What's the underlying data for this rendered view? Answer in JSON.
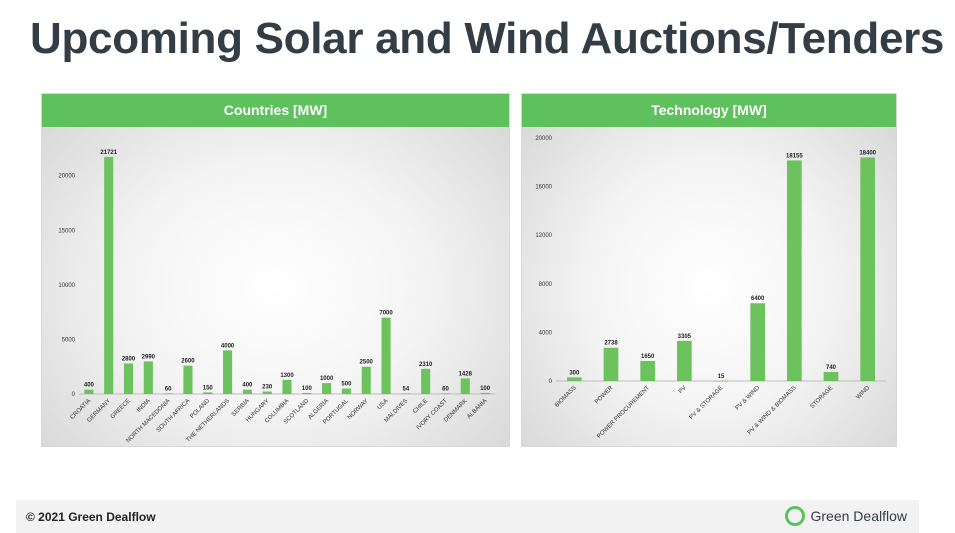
{
  "page": {
    "title": "Upcoming Solar and Wind Auctions/Tenders"
  },
  "footer": {
    "copyright": "© 2021 Green Dealflow",
    "logo_text": "Green Dealflow"
  },
  "colors": {
    "bar": "#6cc35e",
    "header": "#5ec15e",
    "title": "#333d45"
  },
  "chart_data": [
    {
      "type": "bar",
      "title": "Countries [MW]",
      "categories": [
        "CROATIA",
        "GERMANY",
        "GREECE",
        "INDIA",
        "NORTH MACEDONIA",
        "SOUTH AFRICA",
        "POLAND",
        "THE NETHERLANDS",
        "SERBIA",
        "HUNGARY",
        "COLUMBIA",
        "SCOTLAND",
        "ALGERIA",
        "PORTUGAL",
        "NORWAY",
        "USA",
        "MALDIVES",
        "CHILE",
        "IVORY COAST",
        "DENMARK",
        "ALBANIA"
      ],
      "values": [
        400,
        21721,
        2800,
        2990,
        60,
        2600,
        150,
        4000,
        400,
        230,
        1300,
        100,
        1000,
        500,
        2500,
        7000,
        54,
        2310,
        60,
        1428,
        100
      ],
      "ylim": [
        0,
        23000
      ],
      "yticks": [
        0,
        5000,
        10000,
        15000,
        20000
      ],
      "grid": false
    },
    {
      "type": "bar",
      "title": "Technology [MW]",
      "categories": [
        "BIOMASS",
        "POWER",
        "POWER PROCUREMENT",
        "PV",
        "PV & STORAGE",
        "PV & WIND",
        "PV & WIND & BIOMASS",
        "STORAGE",
        "WIND"
      ],
      "values": [
        300,
        2738,
        1650,
        3305,
        15,
        6400,
        18155,
        740,
        18400
      ],
      "ylim": [
        0,
        20000
      ],
      "yticks": [
        0,
        4000,
        8000,
        12000,
        16000,
        20000
      ],
      "grid": false
    }
  ]
}
